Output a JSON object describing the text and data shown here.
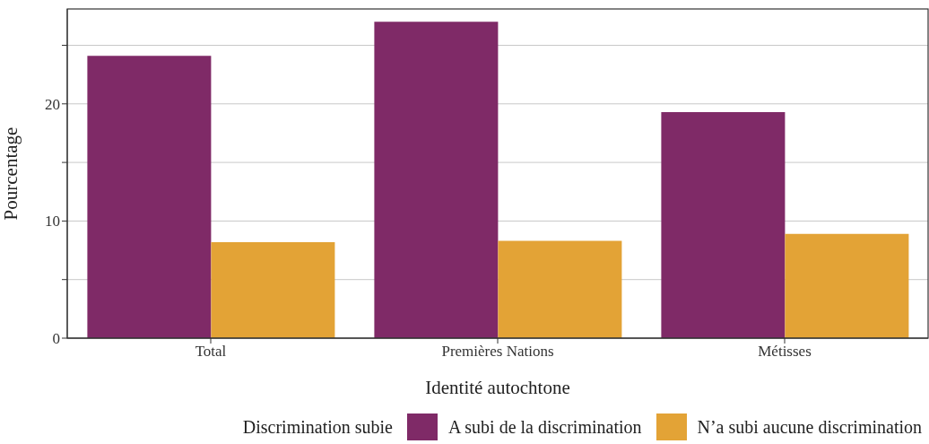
{
  "chart_data": {
    "type": "bar",
    "xlabel": "Identité autochtone",
    "ylabel": "Pourcentage",
    "legend_title": "Discrimination subie",
    "categories": [
      "Total",
      "Premières Nations",
      "Métisses"
    ],
    "series": [
      {
        "name": "A subi de la discrimination",
        "color": "#7f2a67",
        "values": [
          24.1,
          27.0,
          19.3
        ]
      },
      {
        "name": "N’a subi aucune discrimination",
        "color": "#e3a336",
        "values": [
          8.2,
          8.3,
          8.9
        ]
      }
    ],
    "ylim": [
      0,
      28.1
    ],
    "yticks": [
      0,
      {
        "value": 5,
        "label": null
      },
      10,
      {
        "value": 15,
        "label": null
      },
      20,
      {
        "value": 25,
        "label": null
      }
    ],
    "grid": "y",
    "legend": "bottom"
  }
}
